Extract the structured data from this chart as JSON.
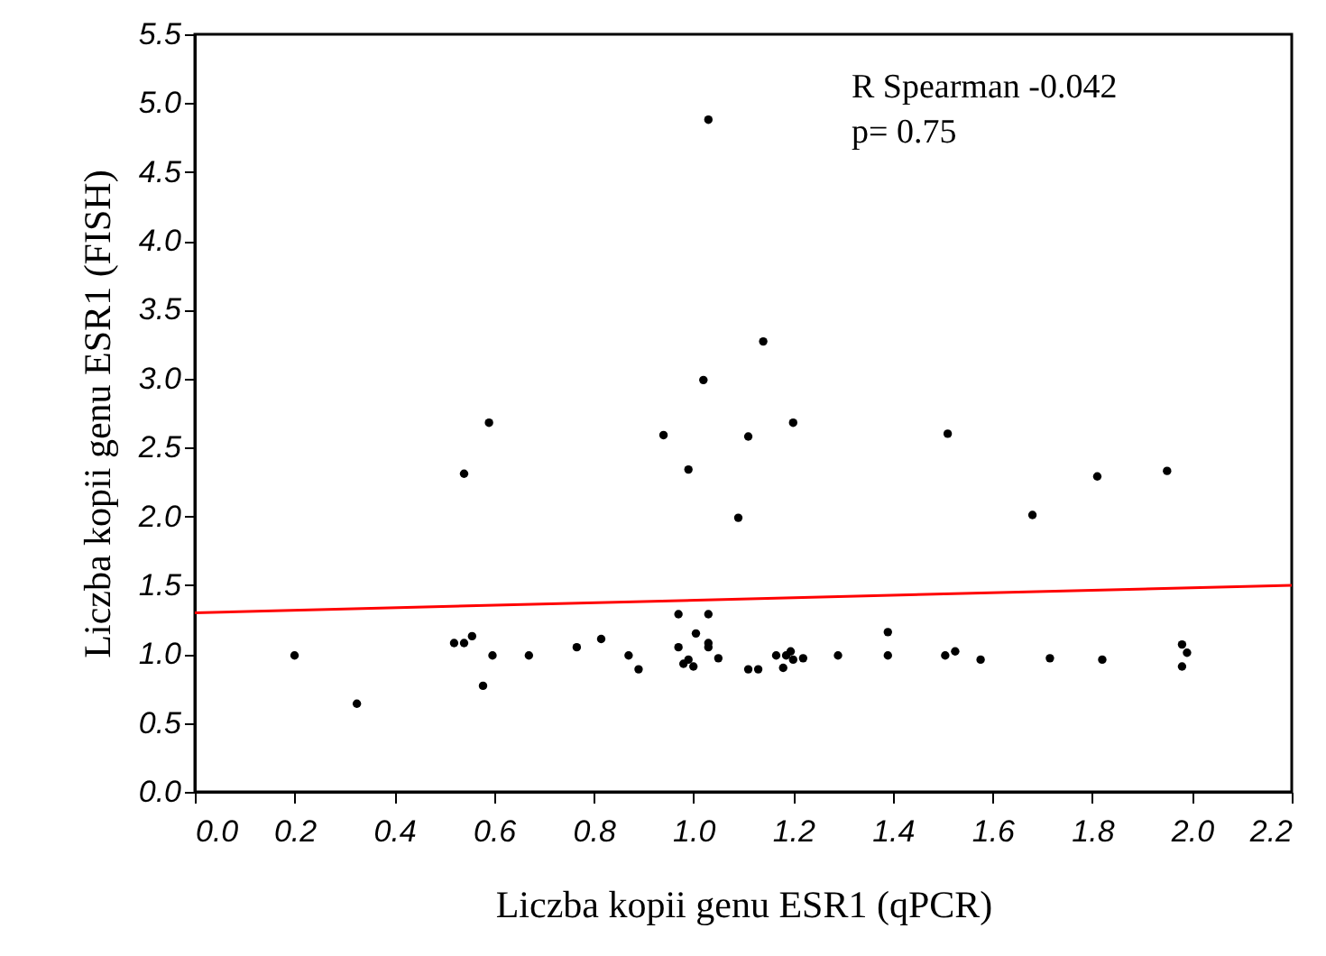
{
  "chart_data": {
    "type": "scatter",
    "xlabel": "Liczba kopii genu ESR1 (qPCR)",
    "ylabel": "Liczba kopii genu ESR1 (FISH)",
    "annotations": [
      "R Spearman -0.042",
      "p= 0.75"
    ],
    "xlim": [
      0,
      2.2
    ],
    "xticks": [
      {
        "value": 0,
        "label": "0.0"
      },
      0.2,
      0.4,
      0.6,
      0.8,
      {
        "value": 1,
        "label": "1.0"
      },
      1.2,
      1.4,
      1.6,
      1.8,
      {
        "value": 2,
        "label": "2.0"
      },
      2.2
    ],
    "ylim": [
      0,
      5.5
    ],
    "yticks": [
      {
        "value": 0,
        "label": "0.0"
      },
      0.5,
      {
        "value": 1,
        "label": "1.0"
      },
      1.5,
      {
        "value": 2,
        "label": "2.0"
      },
      2.5,
      {
        "value": 3,
        "label": "3.0"
      },
      3.5,
      {
        "value": 4,
        "label": "4.0"
      },
      4.5,
      {
        "value": 5,
        "label": "5.0"
      },
      5.5
    ],
    "grid": false,
    "series": [
      {
        "marker": "circle",
        "color": "#000000",
        "x": [
          0.2,
          0.325,
          0.52,
          0.54,
          0.556,
          0.578,
          0.597,
          0.67,
          0.766,
          0.815,
          0.87,
          0.89,
          0.97,
          0.97,
          0.98,
          0.99,
          1.0,
          1.005,
          1.03,
          1.03,
          1.03,
          1.05,
          1.11,
          1.13,
          1.166,
          1.18,
          1.186,
          1.195,
          1.2,
          1.22,
          1.29,
          1.39,
          1.39,
          1.505,
          1.525,
          1.576,
          1.715,
          1.82,
          1.98,
          1.98,
          1.99,
          0.54,
          0.59,
          0.94,
          0.99,
          1.02,
          1.09,
          1.11,
          1.14,
          1.2,
          1.51,
          1.68,
          1.81,
          1.95,
          1.03
        ],
        "values": [
          0.99,
          0.64,
          1.08,
          1.08,
          1.13,
          0.77,
          0.99,
          0.99,
          1.05,
          1.11,
          0.99,
          0.89,
          1.29,
          1.05,
          0.93,
          0.96,
          0.91,
          1.15,
          1.05,
          1.29,
          1.08,
          0.97,
          0.89,
          0.89,
          0.99,
          0.9,
          0.99,
          1.02,
          0.96,
          0.97,
          0.99,
          1.16,
          0.99,
          0.99,
          1.02,
          0.96,
          0.97,
          0.96,
          1.07,
          0.91,
          1.01,
          2.31,
          2.68,
          2.59,
          2.34,
          2.99,
          1.99,
          2.58,
          3.27,
          2.68,
          2.6,
          2.01,
          2.29,
          2.33,
          4.88
        ]
      },
      {
        "type": "line",
        "marker": "none",
        "color": "#ff0000",
        "line_style": "solid",
        "x": [
          0,
          2.2
        ],
        "values": [
          1.3,
          1.5
        ]
      }
    ]
  }
}
